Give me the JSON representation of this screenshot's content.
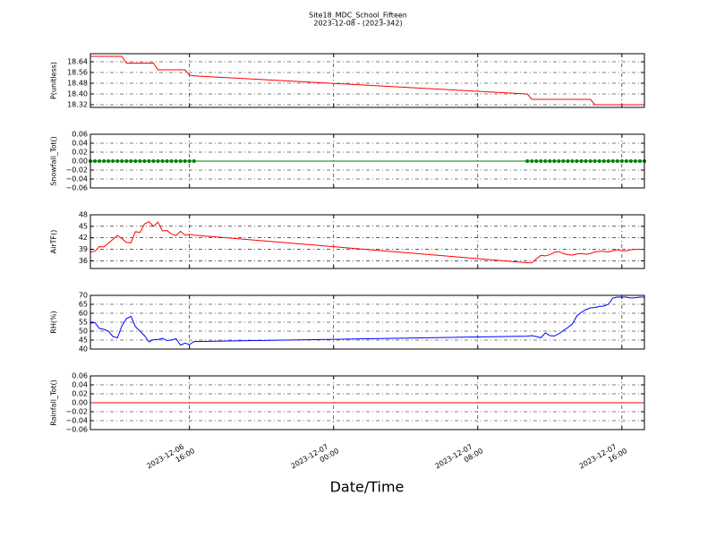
{
  "title": "Site18_MDC_School_Fifteen",
  "subtitle": "2023-12-08 - (2023-342)",
  "xlabel": "Date/Time",
  "chart_data": [
    {
      "type": "line",
      "ylabel": "P(unitless)",
      "color": "#ff0000",
      "markers": false,
      "grid": true,
      "x": [
        "2023-12-06 10:30",
        "2023-12-06 10:45",
        "2023-12-06 11:00",
        "2023-12-06 11:15",
        "2023-12-06 11:30",
        "2023-12-06 11:45",
        "2023-12-06 12:00",
        "2023-12-06 12:15",
        "2023-12-06 12:30",
        "2023-12-06 12:45",
        "2023-12-06 13:00",
        "2023-12-06 13:15",
        "2023-12-06 13:30",
        "2023-12-06 13:45",
        "2023-12-06 14:00",
        "2023-12-06 14:15",
        "2023-12-06 14:30",
        "2023-12-06 14:45",
        "2023-12-06 15:00",
        "2023-12-06 15:15",
        "2023-12-06 15:30",
        "2023-12-06 15:45",
        "2023-12-06 16:00",
        "2023-12-06 16:15",
        "2023-12-07 10:45",
        "2023-12-07 11:00",
        "2023-12-07 11:15",
        "2023-12-07 11:30",
        "2023-12-07 11:45",
        "2023-12-07 12:00",
        "2023-12-07 12:15",
        "2023-12-07 12:30",
        "2023-12-07 12:45",
        "2023-12-07 13:00",
        "2023-12-07 13:15",
        "2023-12-07 13:30",
        "2023-12-07 13:45",
        "2023-12-07 14:00",
        "2023-12-07 14:15",
        "2023-12-07 14:30",
        "2023-12-07 14:45",
        "2023-12-07 15:00",
        "2023-12-07 15:15",
        "2023-12-07 15:30",
        "2023-12-07 15:45",
        "2023-12-07 16:00",
        "2023-12-07 16:15",
        "2023-12-07 16:30",
        "2023-12-07 16:45",
        "2023-12-07 17:00",
        "2023-12-07 17:15"
      ],
      "values": [
        18.68,
        18.68,
        18.68,
        18.68,
        18.68,
        18.68,
        18.68,
        18.68,
        18.63,
        18.63,
        18.63,
        18.63,
        18.63,
        18.63,
        18.63,
        18.58,
        18.58,
        18.58,
        18.58,
        18.58,
        18.58,
        18.58,
        18.54,
        18.535,
        18.4,
        18.36,
        18.36,
        18.36,
        18.36,
        18.36,
        18.36,
        18.36,
        18.36,
        18.36,
        18.36,
        18.36,
        18.36,
        18.36,
        18.36,
        18.32,
        18.32,
        18.32,
        18.32,
        18.32,
        18.32,
        18.32,
        18.32,
        18.32,
        18.32,
        18.32,
        18.32
      ],
      "xlim": [
        "2023-12-06 10:30",
        "2023-12-07 17:15"
      ],
      "xticks": [
        "2023-12-06 16:00",
        "2023-12-07 00:00",
        "2023-12-07 08:00",
        "2023-12-07 16:00"
      ],
      "ylim": [
        18.3,
        18.7
      ],
      "yticks": [
        18.32,
        {
          "value": 18.4,
          "label": "18.40"
        },
        18.48,
        18.56,
        18.64
      ]
    },
    {
      "type": "line",
      "ylabel": "Snowfall_Tot()",
      "color": "#008000",
      "markers": true,
      "grid": true,
      "x": [
        "2023-12-06 10:30",
        "2023-12-06 10:45",
        "2023-12-06 11:00",
        "2023-12-06 11:15",
        "2023-12-06 11:30",
        "2023-12-06 11:45",
        "2023-12-06 12:00",
        "2023-12-06 12:15",
        "2023-12-06 12:30",
        "2023-12-06 12:45",
        "2023-12-06 13:00",
        "2023-12-06 13:15",
        "2023-12-06 13:30",
        "2023-12-06 13:45",
        "2023-12-06 14:00",
        "2023-12-06 14:15",
        "2023-12-06 14:30",
        "2023-12-06 14:45",
        "2023-12-06 15:00",
        "2023-12-06 15:15",
        "2023-12-06 15:30",
        "2023-12-06 15:45",
        "2023-12-06 16:00",
        "2023-12-06 16:15",
        "2023-12-07 10:45",
        "2023-12-07 11:00",
        "2023-12-07 11:15",
        "2023-12-07 11:30",
        "2023-12-07 11:45",
        "2023-12-07 12:00",
        "2023-12-07 12:15",
        "2023-12-07 12:30",
        "2023-12-07 12:45",
        "2023-12-07 13:00",
        "2023-12-07 13:15",
        "2023-12-07 13:30",
        "2023-12-07 13:45",
        "2023-12-07 14:00",
        "2023-12-07 14:15",
        "2023-12-07 14:30",
        "2023-12-07 14:45",
        "2023-12-07 15:00",
        "2023-12-07 15:15",
        "2023-12-07 15:30",
        "2023-12-07 15:45",
        "2023-12-07 16:00",
        "2023-12-07 16:15",
        "2023-12-07 16:30",
        "2023-12-07 16:45",
        "2023-12-07 17:00",
        "2023-12-07 17:15"
      ],
      "values": [
        0,
        0,
        0,
        0,
        0,
        0,
        0,
        0,
        0,
        0,
        0,
        0,
        0,
        0,
        0,
        0,
        0,
        0,
        0,
        0,
        0,
        0,
        0,
        0,
        0,
        0,
        0,
        0,
        0,
        0,
        0,
        0,
        0,
        0,
        0,
        0,
        0,
        0,
        0,
        0,
        0,
        0,
        0,
        0,
        0,
        0,
        0,
        0,
        0,
        0,
        0
      ],
      "xlim": [
        "2023-12-06 10:30",
        "2023-12-07 17:15"
      ],
      "xticks": [
        "2023-12-06 16:00",
        "2023-12-07 00:00",
        "2023-12-07 08:00",
        "2023-12-07 16:00"
      ],
      "ylim": [
        -0.06,
        0.06
      ],
      "yticks": [
        {
          "value": -0.06,
          "label": "−0.06"
        },
        {
          "value": -0.04,
          "label": "−0.04"
        },
        {
          "value": -0.02,
          "label": "−0.02"
        },
        {
          "value": 0,
          "label": "0.00"
        },
        0.02,
        0.04,
        0.06
      ]
    },
    {
      "type": "line",
      "ylabel": "AirTF()",
      "color": "#ff0000",
      "markers": false,
      "grid": true,
      "x": [
        "2023-12-06 10:30",
        "2023-12-06 10:45",
        "2023-12-06 11:00",
        "2023-12-06 11:15",
        "2023-12-06 11:30",
        "2023-12-06 11:45",
        "2023-12-06 12:00",
        "2023-12-06 12:15",
        "2023-12-06 12:30",
        "2023-12-06 12:45",
        "2023-12-06 13:00",
        "2023-12-06 13:15",
        "2023-12-06 13:30",
        "2023-12-06 13:45",
        "2023-12-06 14:00",
        "2023-12-06 14:15",
        "2023-12-06 14:30",
        "2023-12-06 14:45",
        "2023-12-06 15:00",
        "2023-12-06 15:15",
        "2023-12-06 15:30",
        "2023-12-06 15:45",
        "2023-12-06 16:00",
        "2023-12-06 16:15",
        "2023-12-07 10:45",
        "2023-12-07 11:00",
        "2023-12-07 11:15",
        "2023-12-07 11:30",
        "2023-12-07 11:45",
        "2023-12-07 12:00",
        "2023-12-07 12:15",
        "2023-12-07 12:30",
        "2023-12-07 12:45",
        "2023-12-07 13:00",
        "2023-12-07 13:15",
        "2023-12-07 13:30",
        "2023-12-07 13:45",
        "2023-12-07 14:00",
        "2023-12-07 14:15",
        "2023-12-07 14:30",
        "2023-12-07 14:45",
        "2023-12-07 15:00",
        "2023-12-07 15:15",
        "2023-12-07 15:30",
        "2023-12-07 15:45",
        "2023-12-07 16:00",
        "2023-12-07 16:15",
        "2023-12-07 16:30",
        "2023-12-07 16:45",
        "2023-12-07 17:00",
        "2023-12-07 17:15"
      ],
      "values": [
        38.3,
        38.5,
        39.7,
        39.6,
        40.6,
        41.6,
        42.6,
        41.8,
        40.8,
        40.7,
        43.6,
        43.4,
        45.6,
        46.2,
        45.0,
        46.1,
        43.8,
        43.9,
        43.0,
        42.6,
        43.7,
        42.7,
        42.9,
        42.7,
        35.5,
        35.5,
        36.5,
        37.4,
        37.3,
        37.6,
        38.2,
        38.4,
        37.9,
        37.6,
        37.5,
        37.8,
        37.9,
        37.7,
        37.9,
        38.3,
        38.5,
        38.5,
        38.3,
        38.6,
        38.9,
        38.6,
        38.6,
        38.9,
        39.0,
        39.0,
        39.0
      ],
      "xlim": [
        "2023-12-06 10:30",
        "2023-12-07 17:15"
      ],
      "xticks": [
        "2023-12-06 16:00",
        "2023-12-07 00:00",
        "2023-12-07 08:00",
        "2023-12-07 16:00"
      ],
      "ylim": [
        34,
        48
      ],
      "yticks": [
        36,
        39,
        42,
        45,
        48
      ]
    },
    {
      "type": "line",
      "ylabel": "RH(%)",
      "color": "#0000ff",
      "markers": false,
      "grid": true,
      "x": [
        "2023-12-06 10:30",
        "2023-12-06 10:45",
        "2023-12-06 11:00",
        "2023-12-06 11:15",
        "2023-12-06 11:30",
        "2023-12-06 11:45",
        "2023-12-06 12:00",
        "2023-12-06 12:15",
        "2023-12-06 12:30",
        "2023-12-06 12:45",
        "2023-12-06 13:00",
        "2023-12-06 13:15",
        "2023-12-06 13:30",
        "2023-12-06 13:45",
        "2023-12-06 14:00",
        "2023-12-06 14:15",
        "2023-12-06 14:30",
        "2023-12-06 14:45",
        "2023-12-06 15:00",
        "2023-12-06 15:15",
        "2023-12-06 15:30",
        "2023-12-06 15:45",
        "2023-12-06 16:00",
        "2023-12-06 16:15",
        "2023-12-07 10:45",
        "2023-12-07 11:00",
        "2023-12-07 11:15",
        "2023-12-07 11:30",
        "2023-12-07 11:45",
        "2023-12-07 12:00",
        "2023-12-07 12:15",
        "2023-12-07 12:30",
        "2023-12-07 12:45",
        "2023-12-07 13:00",
        "2023-12-07 13:15",
        "2023-12-07 13:30",
        "2023-12-07 13:45",
        "2023-12-07 14:00",
        "2023-12-07 14:15",
        "2023-12-07 14:30",
        "2023-12-07 14:45",
        "2023-12-07 15:00",
        "2023-12-07 15:15",
        "2023-12-07 15:30",
        "2023-12-07 15:45",
        "2023-12-07 16:00",
        "2023-12-07 16:15",
        "2023-12-07 16:30",
        "2023-12-07 16:45",
        "2023-12-07 17:00",
        "2023-12-07 17:15"
      ],
      "values": [
        54.5,
        54.8,
        51.5,
        51.0,
        50.0,
        47.0,
        46.3,
        53.0,
        57.0,
        58.3,
        52.5,
        50.0,
        47.5,
        44.0,
        45.3,
        45.3,
        46.0,
        44.8,
        45.0,
        45.8,
        42.2,
        43.3,
        42.5,
        44.2,
        47.2,
        47.5,
        47.0,
        46.3,
        49.0,
        47.5,
        47.3,
        48.5,
        50.3,
        52.0,
        54.0,
        58.5,
        60.5,
        62.0,
        63.0,
        63.2,
        63.8,
        64.0,
        65.0,
        68.5,
        69.0,
        69.0,
        69.0,
        68.5,
        68.7,
        69.0,
        69.0
      ],
      "xlim": [
        "2023-12-06 10:30",
        "2023-12-07 17:15"
      ],
      "xticks": [
        "2023-12-06 16:00",
        "2023-12-07 00:00",
        "2023-12-07 08:00",
        "2023-12-07 16:00"
      ],
      "ylim": [
        40,
        70
      ],
      "yticks": [
        40,
        45,
        50,
        55,
        60,
        65,
        70
      ]
    },
    {
      "type": "line",
      "ylabel": "Rainfall_Tot()",
      "color": "#ff0000",
      "markers": false,
      "grid": true,
      "x": [
        "2023-12-06 10:30",
        "2023-12-06 10:45",
        "2023-12-06 11:00",
        "2023-12-06 11:15",
        "2023-12-06 11:30",
        "2023-12-06 11:45",
        "2023-12-06 12:00",
        "2023-12-06 12:15",
        "2023-12-06 12:30",
        "2023-12-06 12:45",
        "2023-12-06 13:00",
        "2023-12-06 13:15",
        "2023-12-06 13:30",
        "2023-12-06 13:45",
        "2023-12-06 14:00",
        "2023-12-06 14:15",
        "2023-12-06 14:30",
        "2023-12-06 14:45",
        "2023-12-06 15:00",
        "2023-12-06 15:15",
        "2023-12-06 15:30",
        "2023-12-06 15:45",
        "2023-12-06 16:00",
        "2023-12-06 16:15",
        "2023-12-07 10:45",
        "2023-12-07 11:00",
        "2023-12-07 11:15",
        "2023-12-07 11:30",
        "2023-12-07 11:45",
        "2023-12-07 12:00",
        "2023-12-07 12:15",
        "2023-12-07 12:30",
        "2023-12-07 12:45",
        "2023-12-07 13:00",
        "2023-12-07 13:15",
        "2023-12-07 13:30",
        "2023-12-07 13:45",
        "2023-12-07 14:00",
        "2023-12-07 14:15",
        "2023-12-07 14:30",
        "2023-12-07 14:45",
        "2023-12-07 15:00",
        "2023-12-07 15:15",
        "2023-12-07 15:30",
        "2023-12-07 15:45",
        "2023-12-07 16:00",
        "2023-12-07 16:15",
        "2023-12-07 16:30",
        "2023-12-07 16:45",
        "2023-12-07 17:00",
        "2023-12-07 17:15"
      ],
      "values": [
        0,
        0,
        0,
        0,
        0,
        0,
        0,
        0,
        0,
        0,
        0,
        0,
        0,
        0,
        0,
        0,
        0,
        0,
        0,
        0,
        0,
        0,
        0,
        0,
        0,
        0,
        0,
        0,
        0,
        0,
        0,
        0,
        0,
        0,
        0,
        0,
        0,
        0,
        0,
        0,
        0,
        0,
        0,
        0,
        0,
        0,
        0,
        0,
        0,
        0,
        0
      ],
      "xlim": [
        "2023-12-06 10:30",
        "2023-12-07 17:15"
      ],
      "xticks": [
        "2023-12-06 16:00",
        "2023-12-07 00:00",
        "2023-12-07 08:00",
        "2023-12-07 16:00"
      ],
      "ylim": [
        -0.06,
        0.06
      ],
      "yticks": [
        {
          "value": -0.06,
          "label": "−0.06"
        },
        {
          "value": -0.04,
          "label": "−0.04"
        },
        {
          "value": -0.02,
          "label": "−0.02"
        },
        {
          "value": 0,
          "label": "0.00"
        },
        0.02,
        0.04,
        0.06
      ]
    }
  ]
}
